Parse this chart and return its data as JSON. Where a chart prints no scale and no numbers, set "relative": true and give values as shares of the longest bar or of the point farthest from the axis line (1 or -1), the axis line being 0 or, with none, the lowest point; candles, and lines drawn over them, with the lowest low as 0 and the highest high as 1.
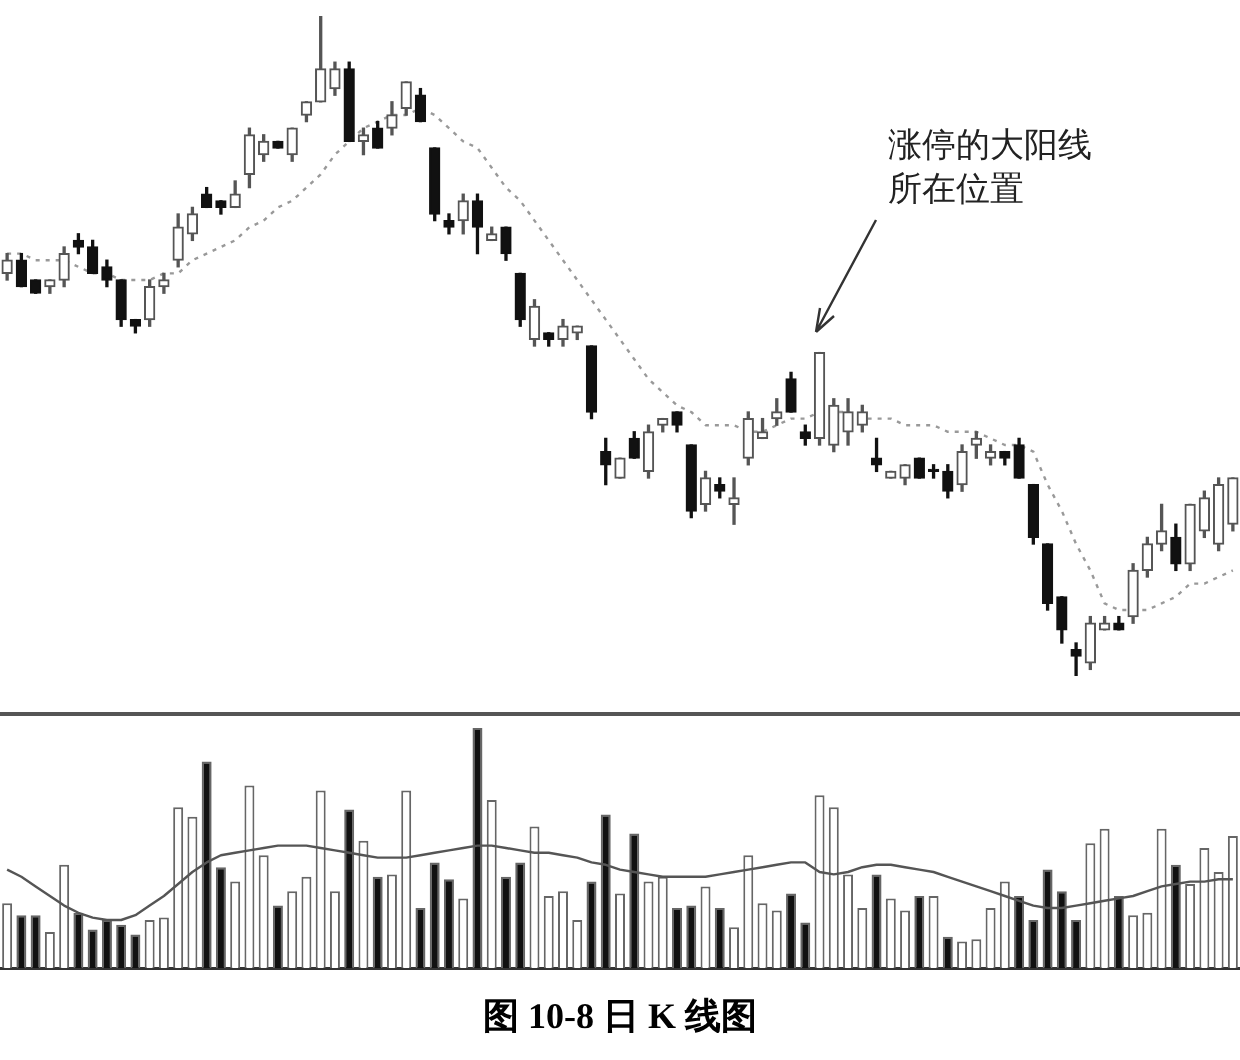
{
  "chart_data": [
    {
      "type": "candlestick",
      "relative": true,
      "legend": false,
      "categories": [
        null,
        null,
        null,
        null,
        null,
        null,
        null,
        null,
        null,
        null,
        null,
        null,
        null,
        null,
        null,
        null,
        null,
        null,
        null,
        null,
        null,
        null,
        null,
        null,
        null,
        null,
        null,
        null,
        null,
        null,
        null,
        null,
        null,
        null,
        null,
        null,
        null,
        null,
        null,
        null,
        null,
        null,
        null,
        null,
        null,
        null,
        null,
        null,
        null,
        null,
        null,
        null,
        null,
        null,
        null,
        null,
        null,
        null,
        null,
        null,
        null,
        null,
        null,
        null,
        null,
        null,
        null,
        null,
        null,
        null,
        null,
        null,
        null,
        null,
        null,
        null,
        null,
        null,
        null,
        null,
        null,
        null,
        null,
        null,
        null,
        null,
        null
      ],
      "ohlc": [
        [
          0.61,
          0.64,
          0.6,
          0.63
        ],
        [
          0.63,
          0.64,
          0.59,
          0.59
        ],
        [
          0.6,
          0.6,
          0.58,
          0.58
        ],
        [
          0.59,
          0.6,
          0.58,
          0.6
        ],
        [
          0.6,
          0.65,
          0.59,
          0.64
        ],
        [
          0.66,
          0.67,
          0.64,
          0.65
        ],
        [
          0.65,
          0.66,
          0.61,
          0.61
        ],
        [
          0.62,
          0.63,
          0.59,
          0.6
        ],
        [
          0.6,
          0.6,
          0.53,
          0.54
        ],
        [
          0.54,
          0.54,
          0.52,
          0.53
        ],
        [
          0.54,
          0.6,
          0.53,
          0.59
        ],
        [
          0.59,
          0.61,
          0.58,
          0.6
        ],
        [
          0.63,
          0.7,
          0.62,
          0.68
        ],
        [
          0.67,
          0.71,
          0.66,
          0.7
        ],
        [
          0.73,
          0.74,
          0.71,
          0.71
        ],
        [
          0.72,
          0.72,
          0.7,
          0.71
        ],
        [
          0.71,
          0.75,
          0.71,
          0.73
        ],
        [
          0.76,
          0.83,
          0.74,
          0.82
        ],
        [
          0.79,
          0.82,
          0.78,
          0.81
        ],
        [
          0.81,
          0.81,
          0.8,
          0.8
        ],
        [
          0.79,
          0.83,
          0.78,
          0.83
        ],
        [
          0.85,
          0.87,
          0.84,
          0.87
        ],
        [
          0.87,
          1.0,
          0.87,
          0.92
        ],
        [
          0.89,
          0.93,
          0.88,
          0.92
        ],
        [
          0.92,
          0.93,
          0.81,
          0.81
        ],
        [
          0.81,
          0.83,
          0.79,
          0.82
        ],
        [
          0.83,
          0.84,
          0.8,
          0.8
        ],
        [
          0.83,
          0.87,
          0.82,
          0.85
        ],
        [
          0.86,
          0.9,
          0.85,
          0.9
        ],
        [
          0.88,
          0.89,
          0.84,
          0.84
        ],
        [
          0.8,
          0.8,
          0.69,
          0.7
        ],
        [
          0.69,
          0.7,
          0.67,
          0.68
        ],
        [
          0.69,
          0.73,
          0.67,
          0.72
        ],
        [
          0.72,
          0.73,
          0.64,
          0.68
        ],
        [
          0.66,
          0.68,
          0.66,
          0.67
        ],
        [
          0.68,
          0.68,
          0.63,
          0.64
        ],
        [
          0.61,
          0.61,
          0.53,
          0.54
        ],
        [
          0.51,
          0.57,
          0.5,
          0.56
        ],
        [
          0.52,
          0.52,
          0.5,
          0.51
        ],
        [
          0.51,
          0.54,
          0.5,
          0.53
        ],
        [
          0.52,
          0.53,
          0.51,
          0.53
        ],
        [
          0.5,
          0.5,
          0.39,
          0.4
        ],
        [
          0.34,
          0.36,
          0.29,
          0.32
        ],
        [
          0.3,
          0.33,
          0.3,
          0.33
        ],
        [
          0.36,
          0.37,
          0.33,
          0.33
        ],
        [
          0.31,
          0.38,
          0.3,
          0.37
        ],
        [
          0.38,
          0.39,
          0.37,
          0.39
        ],
        [
          0.4,
          0.4,
          0.37,
          0.38
        ],
        [
          0.35,
          0.35,
          0.24,
          0.25
        ],
        [
          0.26,
          0.31,
          0.25,
          0.3
        ],
        [
          0.29,
          0.3,
          0.27,
          0.28
        ],
        [
          0.26,
          0.3,
          0.23,
          0.27
        ],
        [
          0.33,
          0.4,
          0.32,
          0.39
        ],
        [
          0.36,
          0.39,
          0.36,
          0.37
        ],
        [
          0.39,
          0.42,
          0.38,
          0.4
        ],
        [
          0.45,
          0.46,
          0.4,
          0.4
        ],
        [
          0.37,
          0.38,
          0.35,
          0.36
        ],
        [
          0.36,
          0.49,
          0.35,
          0.49
        ],
        [
          0.35,
          0.42,
          0.34,
          0.41
        ],
        [
          0.37,
          0.42,
          0.35,
          0.4
        ],
        [
          0.38,
          0.41,
          0.37,
          0.4
        ],
        [
          0.33,
          0.36,
          0.31,
          0.32
        ],
        [
          0.3,
          0.31,
          0.3,
          0.31
        ],
        [
          0.3,
          0.32,
          0.29,
          0.32
        ],
        [
          0.33,
          0.33,
          0.3,
          0.3
        ],
        [
          0.31,
          0.32,
          0.3,
          0.31
        ],
        [
          0.31,
          0.32,
          0.27,
          0.28
        ],
        [
          0.29,
          0.35,
          0.28,
          0.34
        ],
        [
          0.35,
          0.37,
          0.33,
          0.36
        ],
        [
          0.33,
          0.35,
          0.32,
          0.34
        ],
        [
          0.34,
          0.34,
          0.32,
          0.33
        ],
        [
          0.35,
          0.36,
          0.3,
          0.3
        ],
        [
          0.29,
          0.29,
          0.2,
          0.21
        ],
        [
          0.2,
          0.2,
          0.1,
          0.11
        ],
        [
          0.12,
          0.12,
          0.05,
          0.07
        ],
        [
          0.04,
          0.05,
          0.0,
          0.03
        ],
        [
          0.02,
          0.09,
          0.01,
          0.08
        ],
        [
          0.07,
          0.09,
          0.07,
          0.08
        ],
        [
          0.08,
          0.09,
          0.07,
          0.07
        ],
        [
          0.09,
          0.17,
          0.08,
          0.16
        ],
        [
          0.16,
          0.21,
          0.15,
          0.2
        ],
        [
          0.2,
          0.26,
          0.19,
          0.22
        ],
        [
          0.21,
          0.23,
          0.16,
          0.17
        ],
        [
          0.17,
          0.26,
          0.16,
          0.26
        ],
        [
          0.22,
          0.28,
          0.21,
          0.27
        ],
        [
          0.2,
          0.3,
          0.19,
          0.29
        ],
        [
          0.23,
          0.3,
          0.22,
          0.3
        ]
      ],
      "series": [
        {
          "type": "line",
          "color": "#999999",
          "line_style": "dotted",
          "values": [
            0.64,
            0.64,
            0.63,
            0.63,
            0.63,
            0.62,
            0.61,
            0.61,
            0.6,
            0.6,
            0.6,
            0.61,
            0.61,
            0.63,
            0.64,
            0.65,
            0.66,
            0.68,
            0.69,
            0.71,
            0.72,
            0.74,
            0.76,
            0.79,
            0.81,
            0.83,
            0.84,
            0.85,
            0.85,
            0.86,
            0.85,
            0.83,
            0.81,
            0.8,
            0.77,
            0.74,
            0.72,
            0.69,
            0.66,
            0.63,
            0.6,
            0.57,
            0.54,
            0.51,
            0.48,
            0.45,
            0.43,
            0.41,
            0.4,
            0.38,
            0.38,
            0.38,
            0.37,
            0.37,
            0.38,
            0.39,
            0.39,
            0.4,
            0.4,
            0.4,
            0.39,
            0.39,
            0.39,
            0.38,
            0.38,
            0.38,
            0.37,
            0.37,
            0.37,
            0.36,
            0.35,
            0.35,
            0.34,
            0.29,
            0.25,
            0.2,
            0.16,
            0.11,
            0.1,
            0.1,
            0.1,
            0.11,
            0.12,
            0.14,
            0.14,
            0.15,
            0.16
          ]
        }
      ],
      "annotations": [
        "涨停的大阳线所在位置"
      ]
    },
    {
      "type": "bar",
      "relative": true,
      "legend": false,
      "categories": [
        null,
        null,
        null,
        null,
        null,
        null,
        null,
        null,
        null,
        null,
        null,
        null,
        null,
        null,
        null,
        null,
        null,
        null,
        null,
        null,
        null,
        null,
        null,
        null,
        null,
        null,
        null,
        null,
        null,
        null,
        null,
        null,
        null,
        null,
        null,
        null,
        null,
        null,
        null,
        null,
        null,
        null,
        null,
        null,
        null,
        null,
        null,
        null,
        null,
        null,
        null,
        null,
        null,
        null,
        null,
        null,
        null,
        null,
        null,
        null,
        null,
        null,
        null,
        null,
        null,
        null,
        null,
        null,
        null,
        null,
        null,
        null,
        null,
        null,
        null,
        null,
        null,
        null,
        null,
        null,
        null,
        null,
        null,
        null,
        null,
        null,
        null
      ],
      "series": [
        {
          "type": "bar",
          "values": [
            0.27,
            0.22,
            0.22,
            0.15,
            0.43,
            0.23,
            0.16,
            0.2,
            0.18,
            0.14,
            0.2,
            0.21,
            0.67,
            0.63,
            0.86,
            0.42,
            0.36,
            0.76,
            0.47,
            0.26,
            0.32,
            0.38,
            0.74,
            0.32,
            0.66,
            0.53,
            0.38,
            0.39,
            0.74,
            0.25,
            0.44,
            0.37,
            0.29,
            1,
            0.7,
            0.38,
            0.44,
            0.59,
            0.3,
            0.32,
            0.2,
            0.36,
            0.64,
            0.31,
            0.56,
            0.36,
            0.38,
            0.25,
            0.26,
            0.34,
            0.25,
            0.17,
            0.47,
            0.27,
            0.24,
            0.31,
            0.19,
            0.72,
            0.67,
            0.39,
            0.25,
            0.39,
            0.29,
            0.24,
            0.3,
            0.3,
            0.13,
            0.11,
            0.12,
            0.25,
            0.36,
            0.3,
            0.2,
            0.41,
            0.32,
            0.2,
            0.52,
            0.58,
            0.3,
            0.22,
            0.23,
            0.58,
            0.43,
            0.35,
            0.5,
            0.4,
            0.55
          ],
          "colors": [
            "#ffffff",
            "#111111",
            "#111111",
            "#ffffff",
            "#ffffff",
            "#111111",
            "#111111",
            "#111111",
            "#111111",
            "#111111",
            "#ffffff",
            "#ffffff",
            "#ffffff",
            "#ffffff",
            "#111111",
            "#111111",
            "#ffffff",
            "#ffffff",
            "#ffffff",
            "#111111",
            "#ffffff",
            "#ffffff",
            "#ffffff",
            "#ffffff",
            "#111111",
            "#ffffff",
            "#111111",
            "#ffffff",
            "#ffffff",
            "#111111",
            "#111111",
            "#111111",
            "#ffffff",
            "#111111",
            "#ffffff",
            "#111111",
            "#111111",
            "#ffffff",
            "#ffffff",
            "#ffffff",
            "#ffffff",
            "#111111",
            "#111111",
            "#ffffff",
            "#111111",
            "#ffffff",
            "#ffffff",
            "#111111",
            "#111111",
            "#ffffff",
            "#111111",
            "#ffffff",
            "#ffffff",
            "#ffffff",
            "#ffffff",
            "#111111",
            "#111111",
            "#ffffff",
            "#ffffff",
            "#ffffff",
            "#ffffff",
            "#111111",
            "#ffffff",
            "#ffffff",
            "#111111",
            "#ffffff",
            "#111111",
            "#ffffff",
            "#ffffff",
            "#ffffff",
            "#ffffff",
            "#111111",
            "#111111",
            "#111111",
            "#111111",
            "#111111",
            "#ffffff",
            "#ffffff",
            "#111111",
            "#ffffff",
            "#ffffff",
            "#ffffff",
            "#111111",
            "#ffffff",
            "#ffffff",
            "#ffffff",
            "#ffffff"
          ]
        },
        {
          "type": "line",
          "color": "#555555",
          "values": [
            0.41,
            0.38,
            0.34,
            0.3,
            0.26,
            0.23,
            0.21,
            0.2,
            0.2,
            0.22,
            0.26,
            0.3,
            0.35,
            0.4,
            0.44,
            0.47,
            0.48,
            0.49,
            0.5,
            0.51,
            0.51,
            0.51,
            0.5,
            0.49,
            0.48,
            0.47,
            0.46,
            0.46,
            0.46,
            0.47,
            0.48,
            0.49,
            0.5,
            0.51,
            0.51,
            0.5,
            0.49,
            0.48,
            0.48,
            0.47,
            0.46,
            0.44,
            0.43,
            0.41,
            0.4,
            0.39,
            0.38,
            0.38,
            0.38,
            0.38,
            0.39,
            0.4,
            0.41,
            0.42,
            0.43,
            0.44,
            0.44,
            0.4,
            0.39,
            0.4,
            0.42,
            0.43,
            0.43,
            0.42,
            0.41,
            0.4,
            0.38,
            0.36,
            0.34,
            0.32,
            0.3,
            0.28,
            0.26,
            0.25,
            0.25,
            0.26,
            0.27,
            0.28,
            0.29,
            0.3,
            0.32,
            0.34,
            0.35,
            0.36,
            0.36,
            0.37,
            0.37
          ]
        }
      ],
      "annotations": [
        "图 10-8 日 K 线图"
      ]
    }
  ]
}
